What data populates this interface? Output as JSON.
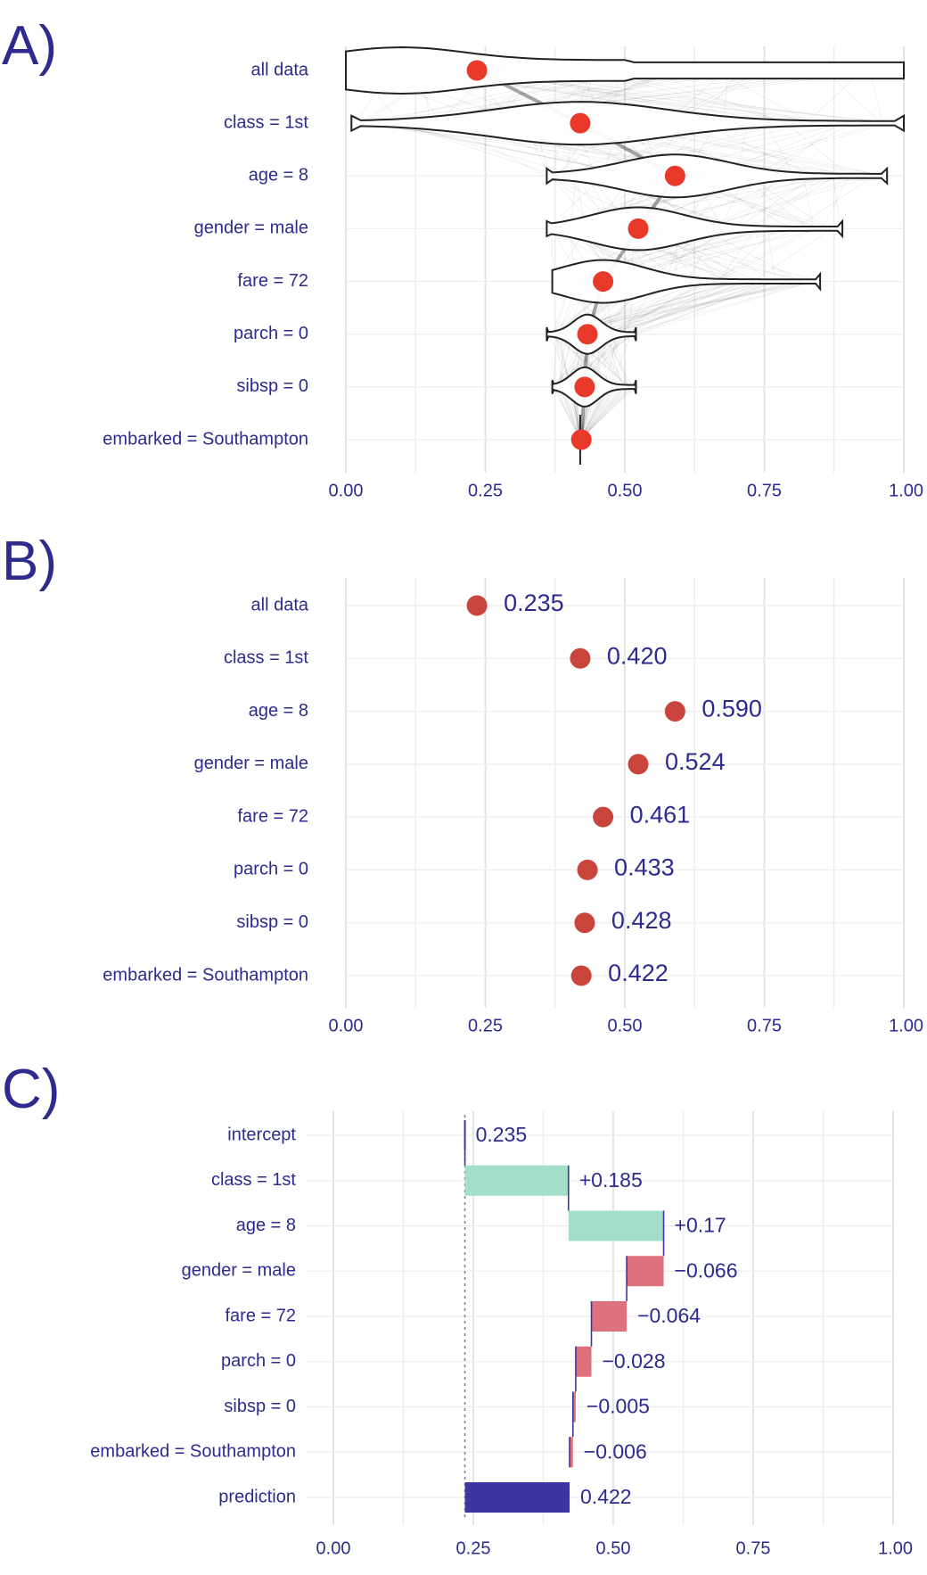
{
  "panels": {
    "a_label": "A)",
    "b_label": "B)",
    "c_label": "C)"
  },
  "colors": {
    "text": "#2e2a8f",
    "dot_a": "#e8392a",
    "dot_b": "#c9443a",
    "positive": "#a3dfc8",
    "negative": "#df717f",
    "prediction": "#3d35a0",
    "grid": "#e4e4e4"
  },
  "chart_data": [
    {
      "type": "violin",
      "panel": "A)",
      "categories": [
        "all data",
        "class = 1st",
        "age = 8",
        "gender = male",
        "fare = 72",
        "parch = 0",
        "sibsp = 0",
        "embarked = Southampton"
      ],
      "values": [
        0.235,
        0.42,
        0.59,
        0.524,
        0.461,
        0.433,
        0.428,
        0.422
      ],
      "ranges": [
        [
          0.0,
          1.0
        ],
        [
          0.01,
          1.0
        ],
        [
          0.36,
          0.97
        ],
        [
          0.36,
          0.89
        ],
        [
          0.37,
          0.85
        ],
        [
          0.36,
          0.52
        ],
        [
          0.37,
          0.52
        ],
        [
          0.42,
          0.42
        ]
      ],
      "xlim": [
        0,
        1
      ],
      "xticks": [
        "0.00",
        "0.25",
        "0.50",
        "0.75",
        "1.00"
      ],
      "grid": true
    },
    {
      "type": "scatter",
      "panel": "B)",
      "categories": [
        "all data",
        "class = 1st",
        "age = 8",
        "gender = male",
        "fare = 72",
        "parch = 0",
        "sibsp = 0",
        "embarked = Southampton"
      ],
      "values": [
        0.235,
        0.42,
        0.59,
        0.524,
        0.461,
        0.433,
        0.428,
        0.422
      ],
      "labels": [
        "0.235",
        "0.420",
        "0.590",
        "0.524",
        "0.461",
        "0.433",
        "0.428",
        "0.422"
      ],
      "xlim": [
        0,
        1
      ],
      "xticks": [
        "0.00",
        "0.25",
        "0.50",
        "0.75",
        "1.00"
      ],
      "grid": true
    },
    {
      "type": "waterfall",
      "panel": "C)",
      "categories": [
        "intercept",
        "class = 1st",
        "age = 8",
        "gender = male",
        "fare = 72",
        "parch = 0",
        "sibsp = 0",
        "embarked = Southampton",
        "prediction"
      ],
      "start": [
        0.235,
        0.235,
        0.42,
        0.59,
        0.524,
        0.461,
        0.433,
        0.428,
        0.235
      ],
      "end": [
        0.235,
        0.42,
        0.59,
        0.524,
        0.461,
        0.433,
        0.428,
        0.422,
        0.422
      ],
      "labels": [
        "0.235",
        "+0.185",
        "+0.17",
        "−0.066",
        "−0.064",
        "−0.028",
        "−0.005",
        "−0.006",
        "0.422"
      ],
      "kinds": [
        "intercept",
        "positive",
        "positive",
        "negative",
        "negative",
        "negative",
        "negative",
        "negative",
        "prediction"
      ],
      "baseline": 0.235,
      "xlim": [
        0,
        1
      ],
      "xticks": [
        "0.00",
        "0.25",
        "0.50",
        "0.75",
        "1.00"
      ],
      "grid": true
    }
  ]
}
